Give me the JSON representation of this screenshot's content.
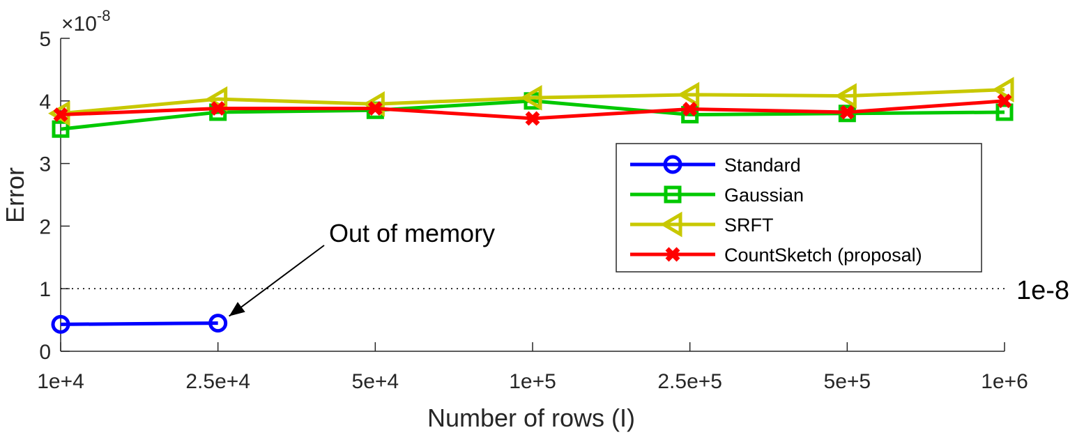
{
  "chart_data": {
    "type": "line",
    "xlabel": "Number of rows (I)",
    "ylabel": "Error",
    "exponent_label": "×10",
    "exponent_power": "-8",
    "categories": [
      "1e+4",
      "2.5e+4",
      "5e+4",
      "1e+5",
      "2.5e+5",
      "5e+5",
      "1e+6"
    ],
    "ylim": [
      0,
      5
    ],
    "yticks": [
      "0",
      "1",
      "2",
      "3",
      "4",
      "5"
    ],
    "grid": false,
    "legend_position": "right",
    "series": [
      {
        "name": "Standard",
        "color": "#0000ff",
        "marker": "circle",
        "values": [
          0.43,
          0.45,
          null,
          null,
          null,
          null,
          null
        ]
      },
      {
        "name": "Gaussian",
        "color": "#00c800",
        "marker": "square",
        "values": [
          3.55,
          3.82,
          3.85,
          4.0,
          3.78,
          3.8,
          3.82
        ]
      },
      {
        "name": "SRFT",
        "color": "#c8c800",
        "marker": "triangle-left",
        "values": [
          3.8,
          4.03,
          3.95,
          4.05,
          4.1,
          4.08,
          4.18
        ]
      },
      {
        "name": "CountSketch (proposal)",
        "color": "#ff0000",
        "marker": "x",
        "values": [
          3.78,
          3.88,
          3.88,
          3.72,
          3.87,
          3.82,
          4.0
        ]
      }
    ],
    "reference_line": {
      "value": 1,
      "label": "1e-8"
    },
    "annotation": {
      "text": "Out of memory",
      "category_index": 1,
      "series": "Standard"
    }
  }
}
